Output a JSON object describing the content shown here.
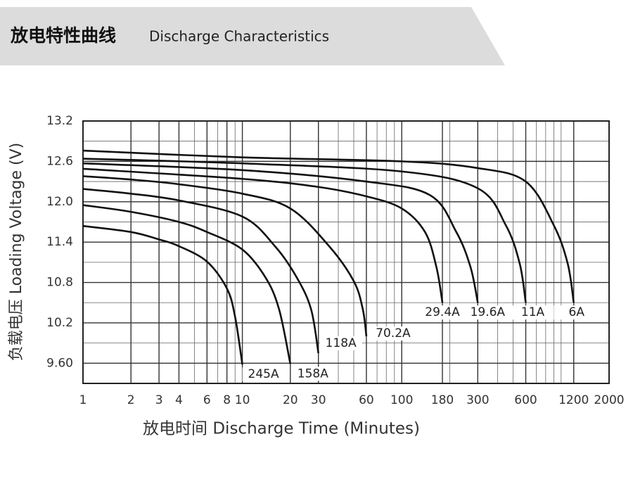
{
  "header": {
    "title": "放电特性曲线",
    "subtitle": "Discharge Characteristics"
  },
  "chart_data": {
    "type": "line",
    "xlabel": "放电时间 Discharge Time (Minutes)",
    "ylabel": "负载电压 Loading Voltage (V)",
    "xscale": "log",
    "grid": true,
    "color": "#111",
    "xlim": [
      1,
      2000
    ],
    "ylim": [
      9.3,
      13.2
    ],
    "xticks": [
      1,
      2,
      3,
      4,
      6,
      8,
      10,
      20,
      30,
      60,
      100,
      180,
      300,
      600,
      1200,
      2000
    ],
    "yticks": [
      {
        "value": 9.6,
        "label": "9.60"
      },
      10.2,
      10.8,
      11.4,
      {
        "value": 12.0,
        "label": "12.0"
      },
      12.6,
      13.2
    ],
    "series": [
      {
        "name": "245A",
        "x": [
          1,
          2,
          3,
          4,
          6,
          8,
          9,
          10
        ],
        "values": [
          11.64,
          11.55,
          11.44,
          11.34,
          11.11,
          10.71,
          10.29,
          9.58
        ]
      },
      {
        "name": "158A",
        "x": [
          1,
          2,
          4,
          6,
          10,
          14,
          17,
          20
        ],
        "values": [
          11.95,
          11.85,
          11.7,
          11.55,
          11.29,
          10.87,
          10.4,
          9.59
        ]
      },
      {
        "name": "118A",
        "x": [
          1,
          2,
          4,
          10,
          16,
          22,
          27,
          30
        ],
        "values": [
          12.19,
          12.12,
          12.02,
          11.78,
          11.34,
          10.87,
          10.4,
          9.75
        ]
      },
      {
        "name": "70.2A",
        "x": [
          1,
          2,
          4,
          10,
          20,
          35,
          50,
          57,
          60
        ],
        "values": [
          12.38,
          12.33,
          12.26,
          12.12,
          11.9,
          11.34,
          10.82,
          10.4,
          10.0
        ]
      },
      {
        "name": "29.4A",
        "x": [
          1,
          10,
          30,
          60,
          100,
          140,
          165,
          180
        ],
        "values": [
          12.49,
          12.34,
          12.22,
          12.08,
          11.9,
          11.55,
          11.03,
          10.5
        ]
      },
      {
        "name": "19.6A",
        "x": [
          1,
          10,
          60,
          150,
          220,
          270,
          300
        ],
        "values": [
          12.57,
          12.47,
          12.3,
          12.1,
          11.55,
          11.03,
          10.5
        ]
      },
      {
        "name": "11A",
        "x": [
          1,
          10,
          100,
          300,
          450,
          550,
          600
        ],
        "values": [
          12.64,
          12.57,
          12.45,
          12.2,
          11.65,
          11.08,
          10.5
        ]
      },
      {
        "name": "6A",
        "x": [
          1,
          10,
          100,
          300,
          600,
          900,
          1100,
          1200
        ],
        "values": [
          12.76,
          12.66,
          12.6,
          12.5,
          12.3,
          11.65,
          11.08,
          10.5
        ]
      }
    ]
  }
}
